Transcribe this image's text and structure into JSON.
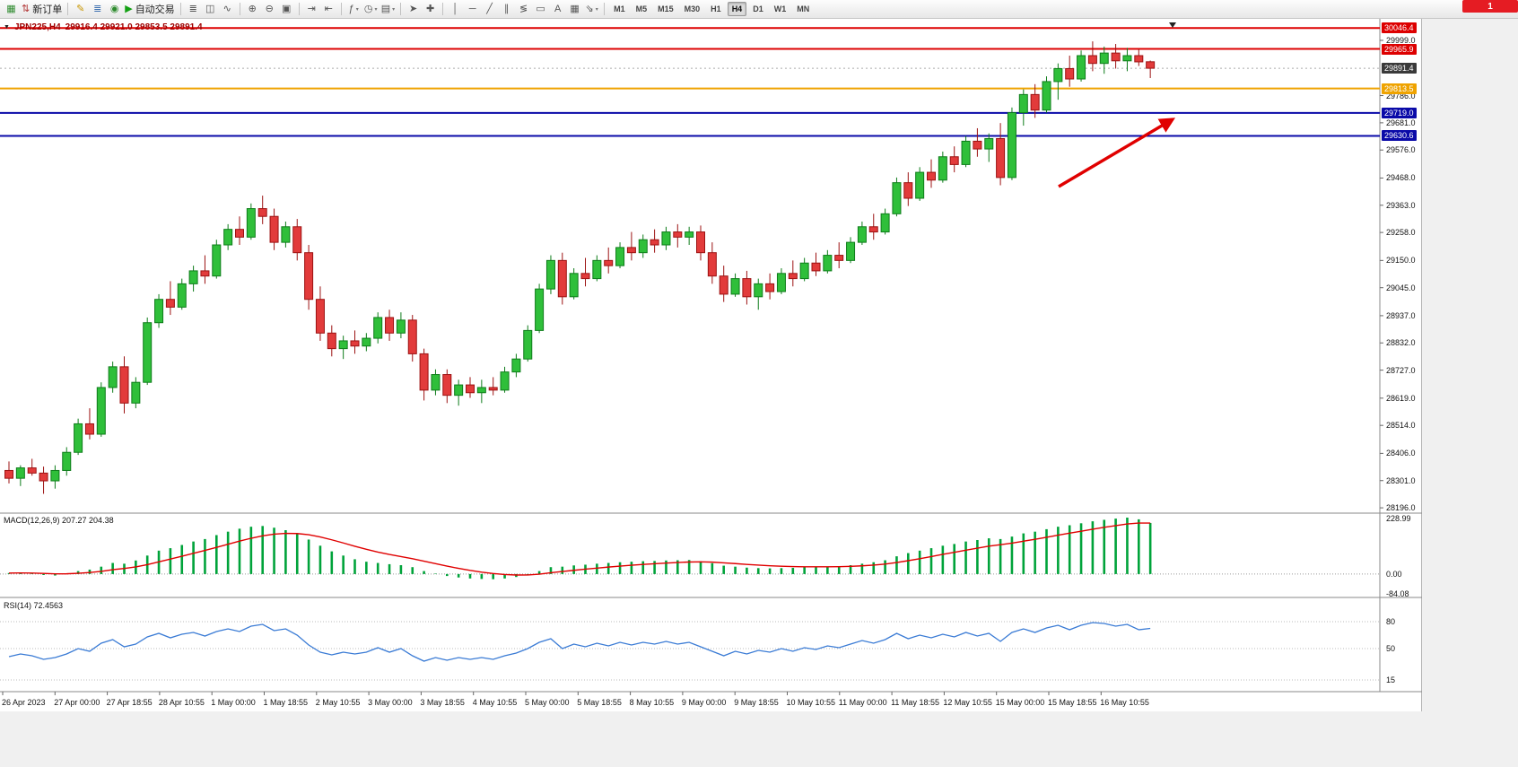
{
  "window": {
    "notification_badge": "1"
  },
  "toolbar": {
    "groups": [
      {
        "items": [
          {
            "name": "new-chart-button",
            "glyph": "▦",
            "color": "#2e8b2e"
          },
          {
            "name": "new-order-button",
            "glyph": "⇅",
            "color": "#b03030",
            "label": "新订单"
          }
        ]
      },
      {
        "items": [
          {
            "name": "metaeditor-button",
            "glyph": "✎",
            "color": "#c89600"
          },
          {
            "name": "data-window-button",
            "glyph": "≣",
            "color": "#3c6fb0"
          },
          {
            "name": "mql5-community-button",
            "glyph": "◉",
            "color": "#2e8b2e"
          },
          {
            "name": "autotrade-button",
            "glyph": "▶",
            "color": "#14a014",
            "label": "自动交易"
          }
        ]
      },
      {
        "items": [
          {
            "name": "bar-chart-button",
            "glyph": "≣"
          },
          {
            "name": "candlestick-chart-button",
            "glyph": "◫"
          },
          {
            "name": "line-chart-button",
            "glyph": "∿"
          }
        ]
      },
      {
        "items": [
          {
            "name": "zoom-in-button",
            "glyph": "⊕"
          },
          {
            "name": "zoom-out-button",
            "glyph": "⊖"
          },
          {
            "name": "tile-windows-button",
            "glyph": "▣"
          }
        ]
      },
      {
        "items": [
          {
            "name": "auto-scroll-button",
            "glyph": "⇥"
          },
          {
            "name": "chart-shift-button",
            "glyph": "⇤"
          }
        ]
      },
      {
        "items": [
          {
            "name": "indicators-button",
            "glyph": "ƒ",
            "dropdown": true
          },
          {
            "name": "periods-button",
            "glyph": "◷",
            "dropdown": true
          },
          {
            "name": "templates-button",
            "glyph": "▤",
            "dropdown": true
          }
        ]
      },
      {
        "items": [
          {
            "name": "cursor-button",
            "glyph": "➤"
          },
          {
            "name": "crosshair-button",
            "glyph": "✚"
          }
        ]
      },
      {
        "items": [
          {
            "name": "vertical-line-button",
            "glyph": "│"
          },
          {
            "name": "horizontal-line-button",
            "glyph": "─"
          },
          {
            "name": "trendline-button",
            "glyph": "╱"
          },
          {
            "name": "channel-button",
            "glyph": "∥"
          },
          {
            "name": "fibonacci-button",
            "glyph": "≶"
          },
          {
            "name": "shapes-button",
            "glyph": "▭"
          },
          {
            "name": "text-button",
            "glyph": "A"
          },
          {
            "name": "text-label-button",
            "glyph": "▦"
          },
          {
            "name": "arrows-button",
            "glyph": "⇘",
            "dropdown": true
          }
        ]
      }
    ],
    "timeframes": {
      "options": [
        "M1",
        "M5",
        "M15",
        "M30",
        "H1",
        "H4",
        "D1",
        "W1",
        "MN"
      ],
      "active": "H4"
    }
  },
  "chart": {
    "title": "JPN225,H4",
    "ohlc_text": "29916.4 29921.0 29853.5 29891.4"
  },
  "indicators": {
    "macd_label": "MACD(12,26,9) 207.27 204.38",
    "rsi_label": "RSI(14) 72.4563"
  },
  "price_axis": {
    "ticks": [
      29999.0,
      29786.0,
      29681.0,
      29576.0,
      29468.0,
      29363.0,
      29258.0,
      29150.0,
      29045.0,
      28937.0,
      28832.0,
      28727.0,
      28619.0,
      28514.0,
      28406.0,
      28301.0,
      28196.0
    ],
    "current_price": {
      "value": 29891.4,
      "bg": "#3a3a3a"
    },
    "level_labels": [
      {
        "value": 30046.4,
        "bg": "#dd0000"
      },
      {
        "value": 29965.9,
        "bg": "#dd0000"
      },
      {
        "value": 29813.5,
        "bg": "#efa300"
      },
      {
        "value": 29719.0,
        "bg": "#0a0aa8"
      },
      {
        "value": 29630.6,
        "bg": "#0a0aa8"
      }
    ]
  },
  "chart_data": {
    "type": "candlestick",
    "symbol": "JPN225",
    "timeframe": "H4",
    "ohlc": {
      "open": 29916.4,
      "high": 29921.0,
      "low": 29853.5,
      "close": 29891.4
    },
    "y_range": [
      28179,
      30075
    ],
    "levels": [
      {
        "price": 30046.4,
        "color": "#dd0000"
      },
      {
        "price": 29965.9,
        "color": "#dd0000"
      },
      {
        "price": 29813.5,
        "color": "#efa300"
      },
      {
        "price": 29719.0,
        "color": "#0a0aa8"
      },
      {
        "price": 29630.6,
        "color": "#0a0aa8"
      }
    ],
    "time_labels": [
      "26 Apr 2023",
      "27 Apr 00:00",
      "27 Apr 18:55",
      "28 Apr 10:55",
      "1 May 00:00",
      "1 May 18:55",
      "2 May 10:55",
      "3 May 00:00",
      "3 May 18:55",
      "4 May 10:55",
      "5 May 00:00",
      "5 May 18:55",
      "8 May 10:55",
      "9 May 00:00",
      "9 May 18:55",
      "10 May 10:55",
      "11 May 00:00",
      "11 May 18:55",
      "12 May 10:55",
      "15 May 00:00",
      "15 May 18:55",
      "16 May 10:55"
    ],
    "candles": [
      [
        28340,
        28375,
        28290,
        28310
      ],
      [
        28310,
        28360,
        28280,
        28350
      ],
      [
        28350,
        28385,
        28320,
        28330
      ],
      [
        28330,
        28355,
        28250,
        28300
      ],
      [
        28300,
        28360,
        28270,
        28340
      ],
      [
        28340,
        28430,
        28320,
        28410
      ],
      [
        28410,
        28540,
        28400,
        28520
      ],
      [
        28520,
        28580,
        28460,
        28480
      ],
      [
        28480,
        28680,
        28470,
        28660
      ],
      [
        28660,
        28760,
        28640,
        28740
      ],
      [
        28740,
        28780,
        28560,
        28600
      ],
      [
        28600,
        28700,
        28580,
        28680
      ],
      [
        28680,
        28930,
        28670,
        28910
      ],
      [
        28910,
        29020,
        28890,
        29000
      ],
      [
        29000,
        29070,
        28940,
        28970
      ],
      [
        28970,
        29080,
        28960,
        29060
      ],
      [
        29060,
        29130,
        29030,
        29110
      ],
      [
        29110,
        29170,
        29060,
        29090
      ],
      [
        29090,
        29230,
        29080,
        29210
      ],
      [
        29210,
        29290,
        29190,
        29270
      ],
      [
        29270,
        29320,
        29210,
        29240
      ],
      [
        29240,
        29370,
        29230,
        29350
      ],
      [
        29350,
        29400,
        29290,
        29320
      ],
      [
        29320,
        29350,
        29190,
        29220
      ],
      [
        29220,
        29300,
        29200,
        29280
      ],
      [
        29280,
        29310,
        29150,
        29180
      ],
      [
        29180,
        29210,
        28960,
        29000
      ],
      [
        29000,
        29050,
        28840,
        28870
      ],
      [
        28870,
        28900,
        28780,
        28810
      ],
      [
        28810,
        28860,
        28770,
        28840
      ],
      [
        28840,
        28880,
        28790,
        28820
      ],
      [
        28820,
        28870,
        28800,
        28850
      ],
      [
        28850,
        28950,
        28830,
        28930
      ],
      [
        28930,
        28960,
        28840,
        28870
      ],
      [
        28870,
        28950,
        28850,
        28920
      ],
      [
        28920,
        28940,
        28760,
        28790
      ],
      [
        28790,
        28810,
        28610,
        28650
      ],
      [
        28650,
        28730,
        28630,
        28710
      ],
      [
        28710,
        28730,
        28600,
        28630
      ],
      [
        28630,
        28690,
        28590,
        28670
      ],
      [
        28670,
        28700,
        28620,
        28640
      ],
      [
        28640,
        28690,
        28600,
        28660
      ],
      [
        28660,
        28700,
        28630,
        28650
      ],
      [
        28650,
        28740,
        28640,
        28720
      ],
      [
        28720,
        28790,
        28700,
        28770
      ],
      [
        28770,
        28900,
        28760,
        28880
      ],
      [
        28880,
        29060,
        28870,
        29040
      ],
      [
        29040,
        29170,
        29020,
        29150
      ],
      [
        29150,
        29180,
        28980,
        29010
      ],
      [
        29010,
        29120,
        29000,
        29100
      ],
      [
        29100,
        29160,
        29050,
        29080
      ],
      [
        29080,
        29170,
        29070,
        29150
      ],
      [
        29150,
        29200,
        29100,
        29130
      ],
      [
        29130,
        29220,
        29120,
        29200
      ],
      [
        29200,
        29260,
        29150,
        29180
      ],
      [
        29180,
        29250,
        29160,
        29230
      ],
      [
        29230,
        29270,
        29180,
        29210
      ],
      [
        29210,
        29280,
        29190,
        29260
      ],
      [
        29260,
        29290,
        29200,
        29240
      ],
      [
        29240,
        29280,
        29210,
        29260
      ],
      [
        29260,
        29285,
        29150,
        29180
      ],
      [
        29180,
        29220,
        29060,
        29090
      ],
      [
        29090,
        29130,
        28990,
        29020
      ],
      [
        29020,
        29100,
        29010,
        29080
      ],
      [
        29080,
        29110,
        28980,
        29010
      ],
      [
        29010,
        29080,
        28960,
        29060
      ],
      [
        29060,
        29100,
        29000,
        29030
      ],
      [
        29030,
        29120,
        29020,
        29100
      ],
      [
        29100,
        29150,
        29050,
        29080
      ],
      [
        29080,
        29160,
        29070,
        29140
      ],
      [
        29140,
        29180,
        29090,
        29110
      ],
      [
        29110,
        29190,
        29100,
        29170
      ],
      [
        29170,
        29220,
        29120,
        29150
      ],
      [
        29150,
        29240,
        29140,
        29220
      ],
      [
        29220,
        29300,
        29210,
        29280
      ],
      [
        29280,
        29330,
        29230,
        29260
      ],
      [
        29260,
        29350,
        29250,
        29330
      ],
      [
        29330,
        29470,
        29320,
        29450
      ],
      [
        29450,
        29490,
        29360,
        29390
      ],
      [
        29390,
        29510,
        29380,
        29490
      ],
      [
        29490,
        29540,
        29430,
        29460
      ],
      [
        29460,
        29570,
        29450,
        29550
      ],
      [
        29550,
        29590,
        29490,
        29520
      ],
      [
        29520,
        29630,
        29510,
        29610
      ],
      [
        29610,
        29660,
        29550,
        29580
      ],
      [
        29580,
        29640,
        29530,
        29620
      ],
      [
        29620,
        29680,
        29440,
        29470
      ],
      [
        29470,
        29740,
        29460,
        29720
      ],
      [
        29720,
        29810,
        29670,
        29790
      ],
      [
        29790,
        29830,
        29700,
        29730
      ],
      [
        29730,
        29860,
        29720,
        29840
      ],
      [
        29840,
        29910,
        29770,
        29890
      ],
      [
        29890,
        29940,
        29820,
        29850
      ],
      [
        29850,
        29960,
        29840,
        29940
      ],
      [
        29940,
        29995,
        29880,
        29910
      ],
      [
        29910,
        29975,
        29870,
        29950
      ],
      [
        29950,
        29985,
        29890,
        29920
      ],
      [
        29920,
        29970,
        29880,
        29940
      ],
      [
        29940,
        29965,
        29900,
        29916
      ],
      [
        29916.4,
        29921,
        29853.5,
        29891.4
      ]
    ],
    "indicators": [
      {
        "name": "MACD",
        "params": [
          12,
          26,
          9
        ],
        "main": 207.27,
        "signal": 204.38,
        "scale_max": 228.99,
        "scale_min": -84.08,
        "histogram": [
          4,
          6,
          3,
          -4,
          -6,
          2,
          12,
          18,
          30,
          45,
          42,
          55,
          75,
          95,
          105,
          118,
          132,
          142,
          158,
          172,
          184,
          192,
          195,
          188,
          178,
          162,
          140,
          115,
          92,
          75,
          60,
          50,
          45,
          40,
          36,
          28,
          12,
          2,
          -8,
          -14,
          -18,
          -20,
          -21,
          -18,
          -12,
          -2,
          12,
          28,
          30,
          35,
          38,
          42,
          45,
          48,
          50,
          52,
          53,
          55,
          56,
          57,
          52,
          44,
          34,
          30,
          26,
          24,
          23,
          24,
          25,
          27,
          28,
          30,
          32,
          36,
          42,
          48,
          56,
          72,
          85,
          95,
          105,
          115,
          122,
          132,
          138,
          145,
          142,
          152,
          165,
          172,
          182,
          192,
          198,
          206,
          214,
          220,
          225,
          228.99,
          222,
          207.27
        ]
      },
      {
        "name": "RSI",
        "params": [
          14
        ],
        "value": 72.4563,
        "levels": [
          80,
          50,
          15
        ],
        "values": [
          41,
          44,
          42,
          38,
          40,
          44,
          50,
          47,
          56,
          60,
          52,
          55,
          63,
          67,
          62,
          66,
          68,
          64,
          69,
          72,
          69,
          75,
          77,
          70,
          72,
          65,
          54,
          46,
          43,
          46,
          44,
          46,
          51,
          46,
          50,
          42,
          36,
          40,
          37,
          40,
          38,
          40,
          38,
          42,
          45,
          50,
          57,
          61,
          50,
          55,
          52,
          56,
          53,
          57,
          54,
          57,
          55,
          58,
          55,
          57,
          52,
          47,
          42,
          47,
          44,
          48,
          46,
          50,
          47,
          51,
          49,
          53,
          51,
          55,
          59,
          56,
          60,
          67,
          61,
          65,
          62,
          66,
          63,
          68,
          64,
          67,
          58,
          68,
          72,
          68,
          73,
          76,
          71,
          76,
          79,
          78,
          75,
          77,
          71,
          72.46
        ]
      }
    ],
    "annotation_arrow": {
      "from": [
        1180,
        187
      ],
      "to": [
        1307,
        112
      ],
      "color": "#e00000"
    }
  }
}
